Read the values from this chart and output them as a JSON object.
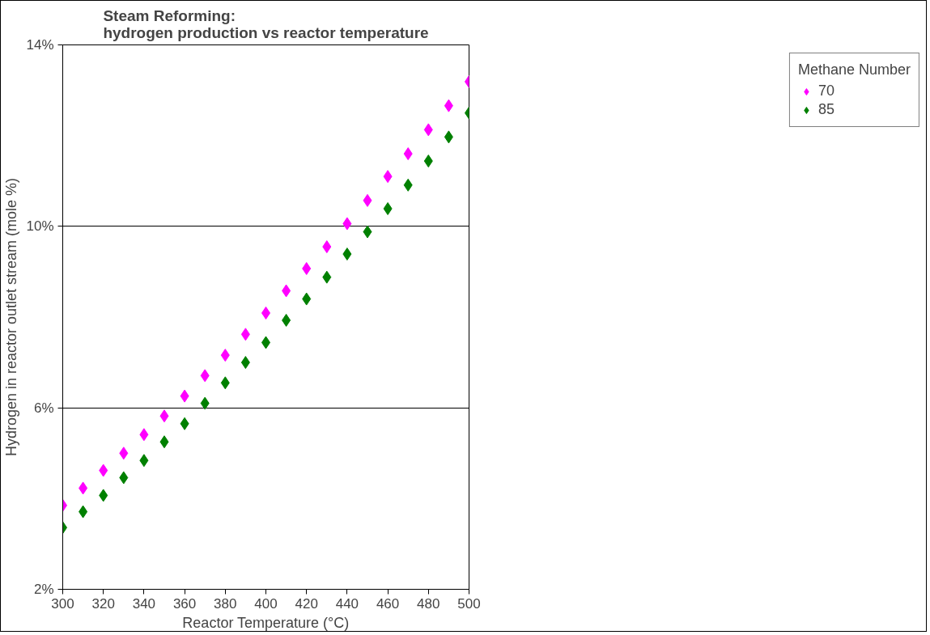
{
  "chart_data": {
    "type": "scatter",
    "title": "Steam Reforming:\nhydrogen production vs reactor temperature",
    "xlabel": "Reactor Temperature (°C)",
    "ylabel": "Hydrogen in reactor outlet stream (mole %)",
    "legend_title": "Methane Number",
    "x": [
      300,
      310,
      320,
      330,
      340,
      350,
      360,
      370,
      380,
      390,
      400,
      410,
      420,
      430,
      440,
      450,
      460,
      470,
      480,
      490,
      500
    ],
    "series": [
      {
        "name": "70",
        "color": "#ff00ff",
        "values": [
          3.85,
          4.23,
          4.62,
          5.0,
          5.41,
          5.82,
          6.26,
          6.71,
          7.16,
          7.62,
          8.09,
          8.58,
          9.07,
          9.55,
          10.06,
          10.57,
          11.1,
          11.6,
          12.13,
          12.66,
          13.19
        ]
      },
      {
        "name": "85",
        "color": "#008000",
        "values": [
          3.36,
          3.71,
          4.07,
          4.46,
          4.84,
          5.25,
          5.65,
          6.1,
          6.55,
          7.0,
          7.44,
          7.93,
          8.4,
          8.88,
          9.39,
          9.88,
          10.39,
          10.91,
          11.44,
          11.97,
          12.5
        ]
      }
    ],
    "xlim": [
      300,
      500
    ],
    "xticks": [
      300,
      320,
      340,
      360,
      380,
      400,
      420,
      440,
      460,
      480,
      500
    ],
    "ylim": [
      2,
      14
    ],
    "yticks": [
      {
        "value": 2,
        "label": "2%"
      },
      {
        "value": 6,
        "label": "6%"
      },
      {
        "value": 10,
        "label": "10%"
      },
      {
        "value": 14,
        "label": "14%"
      }
    ],
    "grid": "y",
    "legend": "right",
    "marker": "diamond"
  }
}
